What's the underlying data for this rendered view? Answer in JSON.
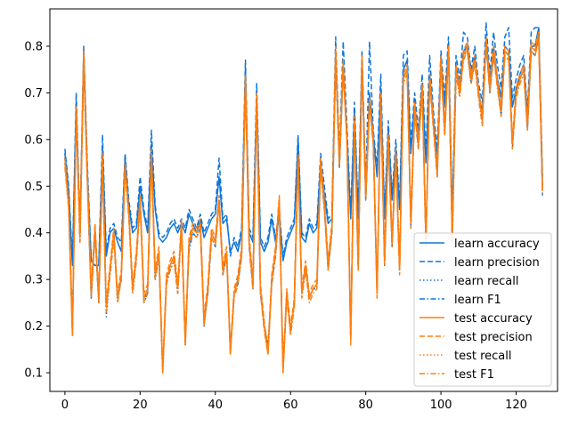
{
  "chart_data": {
    "type": "line",
    "title": "",
    "xlabel": "",
    "ylabel": "",
    "xlim": [
      -4,
      131
    ],
    "ylim": [
      0.06,
      0.88
    ],
    "xticks": [
      0,
      20,
      40,
      60,
      80,
      100,
      120
    ],
    "yticks": [
      0.1,
      0.2,
      0.3,
      0.4,
      0.5,
      0.6,
      0.7,
      0.8
    ],
    "grid": false,
    "legend_position": "bottom-right",
    "x": [
      0,
      1,
      2,
      3,
      4,
      5,
      6,
      7,
      8,
      9,
      10,
      11,
      12,
      13,
      14,
      15,
      16,
      17,
      18,
      19,
      20,
      21,
      22,
      23,
      24,
      25,
      26,
      27,
      28,
      29,
      30,
      31,
      32,
      33,
      34,
      35,
      36,
      37,
      38,
      39,
      40,
      41,
      42,
      43,
      44,
      45,
      46,
      47,
      48,
      49,
      50,
      51,
      52,
      53,
      54,
      55,
      56,
      57,
      58,
      59,
      60,
      61,
      62,
      63,
      64,
      65,
      66,
      67,
      68,
      69,
      70,
      71,
      72,
      73,
      74,
      75,
      76,
      77,
      78,
      79,
      80,
      81,
      82,
      83,
      84,
      85,
      86,
      87,
      88,
      89,
      90,
      91,
      92,
      93,
      94,
      95,
      96,
      97,
      98,
      99,
      100,
      101,
      102,
      103,
      104,
      105,
      106,
      107,
      108,
      109,
      110,
      111,
      112,
      113,
      114,
      115,
      116,
      117,
      118,
      119,
      120,
      121,
      122,
      123,
      124,
      125,
      126,
      127
    ],
    "series": [
      {
        "name": "learn accuracy",
        "color": "#0f75d9",
        "dash": "solid",
        "values": [
          0.57,
          0.49,
          0.33,
          0.68,
          0.4,
          0.79,
          0.52,
          0.34,
          0.33,
          0.33,
          0.58,
          0.35,
          0.4,
          0.41,
          0.38,
          0.36,
          0.56,
          0.46,
          0.4,
          0.41,
          0.5,
          0.44,
          0.4,
          0.59,
          0.45,
          0.39,
          0.38,
          0.39,
          0.41,
          0.42,
          0.4,
          0.42,
          0.4,
          0.44,
          0.42,
          0.4,
          0.43,
          0.39,
          0.41,
          0.43,
          0.44,
          0.52,
          0.42,
          0.43,
          0.36,
          0.38,
          0.36,
          0.4,
          0.75,
          0.4,
          0.38,
          0.69,
          0.38,
          0.36,
          0.38,
          0.43,
          0.38,
          0.44,
          0.34,
          0.38,
          0.4,
          0.42,
          0.6,
          0.39,
          0.38,
          0.42,
          0.4,
          0.41,
          0.55,
          0.48,
          0.42,
          0.43,
          0.78,
          0.55,
          0.76,
          0.61,
          0.43,
          0.66,
          0.43,
          0.77,
          0.48,
          0.7,
          0.61,
          0.52,
          0.71,
          0.43,
          0.62,
          0.47,
          0.58,
          0.45,
          0.75,
          0.77,
          0.57,
          0.68,
          0.6,
          0.72,
          0.55,
          0.74,
          0.64,
          0.56,
          0.77,
          0.67,
          0.8,
          0.43,
          0.76,
          0.71,
          0.79,
          0.8,
          0.73,
          0.78,
          0.7,
          0.66,
          0.82,
          0.72,
          0.8,
          0.73,
          0.69,
          0.8,
          0.79,
          0.67,
          0.71,
          0.74,
          0.76,
          0.65,
          0.8,
          0.8,
          0.84,
          0.5
        ]
      },
      {
        "name": "learn precision",
        "color": "#0f75d9",
        "dash": "dashed",
        "values": [
          0.58,
          0.5,
          0.34,
          0.7,
          0.41,
          0.8,
          0.54,
          0.34,
          0.33,
          0.33,
          0.61,
          0.36,
          0.41,
          0.42,
          0.39,
          0.38,
          0.57,
          0.47,
          0.41,
          0.42,
          0.52,
          0.45,
          0.41,
          0.62,
          0.46,
          0.4,
          0.39,
          0.4,
          0.42,
          0.43,
          0.41,
          0.43,
          0.41,
          0.45,
          0.43,
          0.41,
          0.44,
          0.4,
          0.42,
          0.44,
          0.45,
          0.56,
          0.43,
          0.44,
          0.35,
          0.39,
          0.37,
          0.41,
          0.77,
          0.41,
          0.39,
          0.72,
          0.39,
          0.37,
          0.39,
          0.44,
          0.39,
          0.45,
          0.35,
          0.39,
          0.41,
          0.43,
          0.61,
          0.4,
          0.39,
          0.43,
          0.41,
          0.42,
          0.57,
          0.5,
          0.43,
          0.44,
          0.82,
          0.57,
          0.81,
          0.63,
          0.44,
          0.68,
          0.44,
          0.79,
          0.5,
          0.81,
          0.62,
          0.54,
          0.74,
          0.44,
          0.64,
          0.48,
          0.6,
          0.46,
          0.78,
          0.79,
          0.59,
          0.7,
          0.62,
          0.74,
          0.57,
          0.78,
          0.66,
          0.58,
          0.79,
          0.69,
          0.82,
          0.44,
          0.78,
          0.73,
          0.83,
          0.82,
          0.75,
          0.8,
          0.72,
          0.68,
          0.85,
          0.74,
          0.83,
          0.76,
          0.71,
          0.82,
          0.84,
          0.69,
          0.73,
          0.76,
          0.78,
          0.66,
          0.83,
          0.84,
          0.84,
          0.52
        ]
      },
      {
        "name": "learn recall",
        "color": "#0f75d9",
        "dash": "dotted",
        "values": [
          0.57,
          0.48,
          0.19,
          0.67,
          0.39,
          0.77,
          0.51,
          0.26,
          0.41,
          0.25,
          0.56,
          0.22,
          0.32,
          0.4,
          0.25,
          0.31,
          0.55,
          0.45,
          0.28,
          0.35,
          0.48,
          0.25,
          0.27,
          0.58,
          0.3,
          0.36,
          0.1,
          0.3,
          0.33,
          0.35,
          0.28,
          0.42,
          0.16,
          0.37,
          0.41,
          0.4,
          0.42,
          0.2,
          0.27,
          0.4,
          0.38,
          0.48,
          0.32,
          0.36,
          0.15,
          0.27,
          0.3,
          0.36,
          0.73,
          0.38,
          0.29,
          0.69,
          0.27,
          0.2,
          0.15,
          0.3,
          0.36,
          0.47,
          0.11,
          0.27,
          0.19,
          0.25,
          0.57,
          0.27,
          0.33,
          0.26,
          0.28,
          0.29,
          0.55,
          0.46,
          0.33,
          0.41,
          0.78,
          0.55,
          0.76,
          0.61,
          0.17,
          0.65,
          0.33,
          0.77,
          0.48,
          0.69,
          0.6,
          0.27,
          0.7,
          0.34,
          0.61,
          0.38,
          0.58,
          0.32,
          0.74,
          0.76,
          0.42,
          0.67,
          0.59,
          0.72,
          0.38,
          0.74,
          0.64,
          0.53,
          0.77,
          0.62,
          0.8,
          0.39,
          0.75,
          0.71,
          0.79,
          0.8,
          0.73,
          0.78,
          0.7,
          0.64,
          0.82,
          0.71,
          0.79,
          0.73,
          0.66,
          0.8,
          0.79,
          0.59,
          0.71,
          0.74,
          0.76,
          0.63,
          0.8,
          0.79,
          0.83,
          0.49
        ]
      },
      {
        "name": "learn F1",
        "color": "#0f75d9",
        "dash": "dashdot",
        "values": [
          0.56,
          0.47,
          0.2,
          0.66,
          0.38,
          0.76,
          0.5,
          0.26,
          0.4,
          0.25,
          0.55,
          0.23,
          0.31,
          0.39,
          0.26,
          0.3,
          0.54,
          0.44,
          0.27,
          0.34,
          0.47,
          0.26,
          0.27,
          0.57,
          0.3,
          0.35,
          0.11,
          0.29,
          0.32,
          0.34,
          0.27,
          0.41,
          0.17,
          0.36,
          0.4,
          0.39,
          0.41,
          0.21,
          0.27,
          0.39,
          0.37,
          0.47,
          0.31,
          0.35,
          0.15,
          0.27,
          0.29,
          0.35,
          0.72,
          0.37,
          0.28,
          0.68,
          0.27,
          0.2,
          0.16,
          0.29,
          0.35,
          0.46,
          0.12,
          0.27,
          0.19,
          0.25,
          0.56,
          0.27,
          0.32,
          0.26,
          0.28,
          0.28,
          0.54,
          0.45,
          0.32,
          0.4,
          0.77,
          0.54,
          0.75,
          0.6,
          0.18,
          0.64,
          0.32,
          0.76,
          0.47,
          0.68,
          0.59,
          0.27,
          0.69,
          0.33,
          0.6,
          0.37,
          0.57,
          0.32,
          0.73,
          0.75,
          0.41,
          0.66,
          0.58,
          0.71,
          0.38,
          0.73,
          0.63,
          0.52,
          0.76,
          0.61,
          0.79,
          0.38,
          0.74,
          0.7,
          0.78,
          0.79,
          0.72,
          0.77,
          0.69,
          0.63,
          0.81,
          0.7,
          0.78,
          0.72,
          0.65,
          0.79,
          0.78,
          0.58,
          0.7,
          0.73,
          0.75,
          0.62,
          0.79,
          0.78,
          0.82,
          0.48
        ]
      },
      {
        "name": "test accuracy",
        "color": "#ff7f0e",
        "dash": "solid",
        "values": [
          0.55,
          0.46,
          0.18,
          0.66,
          0.39,
          0.78,
          0.51,
          0.27,
          0.41,
          0.26,
          0.55,
          0.24,
          0.32,
          0.4,
          0.26,
          0.31,
          0.54,
          0.44,
          0.28,
          0.35,
          0.47,
          0.26,
          0.28,
          0.57,
          0.31,
          0.36,
          0.1,
          0.3,
          0.33,
          0.35,
          0.28,
          0.42,
          0.16,
          0.38,
          0.41,
          0.4,
          0.42,
          0.21,
          0.28,
          0.4,
          0.38,
          0.47,
          0.32,
          0.36,
          0.14,
          0.27,
          0.3,
          0.36,
          0.73,
          0.38,
          0.29,
          0.69,
          0.28,
          0.2,
          0.14,
          0.3,
          0.36,
          0.47,
          0.1,
          0.27,
          0.19,
          0.25,
          0.56,
          0.27,
          0.33,
          0.26,
          0.28,
          0.29,
          0.55,
          0.46,
          0.33,
          0.41,
          0.79,
          0.55,
          0.76,
          0.6,
          0.17,
          0.64,
          0.33,
          0.77,
          0.48,
          0.68,
          0.6,
          0.27,
          0.69,
          0.34,
          0.6,
          0.38,
          0.57,
          0.32,
          0.73,
          0.75,
          0.42,
          0.67,
          0.59,
          0.71,
          0.38,
          0.73,
          0.63,
          0.53,
          0.77,
          0.62,
          0.79,
          0.39,
          0.75,
          0.7,
          0.78,
          0.8,
          0.73,
          0.77,
          0.7,
          0.64,
          0.81,
          0.71,
          0.79,
          0.72,
          0.66,
          0.79,
          0.78,
          0.59,
          0.7,
          0.73,
          0.75,
          0.63,
          0.8,
          0.79,
          0.82,
          0.49
        ]
      },
      {
        "name": "test precision",
        "color": "#ff7f0e",
        "dash": "dashed",
        "values": [
          0.56,
          0.47,
          0.19,
          0.67,
          0.4,
          0.79,
          0.52,
          0.28,
          0.42,
          0.27,
          0.57,
          0.25,
          0.33,
          0.41,
          0.27,
          0.32,
          0.55,
          0.45,
          0.29,
          0.36,
          0.48,
          0.27,
          0.29,
          0.58,
          0.32,
          0.37,
          0.11,
          0.31,
          0.34,
          0.36,
          0.29,
          0.43,
          0.17,
          0.39,
          0.42,
          0.41,
          0.43,
          0.22,
          0.29,
          0.41,
          0.39,
          0.48,
          0.33,
          0.37,
          0.15,
          0.28,
          0.31,
          0.37,
          0.74,
          0.39,
          0.3,
          0.7,
          0.29,
          0.21,
          0.15,
          0.31,
          0.37,
          0.48,
          0.11,
          0.28,
          0.2,
          0.26,
          0.57,
          0.28,
          0.34,
          0.27,
          0.29,
          0.3,
          0.56,
          0.47,
          0.34,
          0.42,
          0.8,
          0.56,
          0.77,
          0.61,
          0.18,
          0.65,
          0.34,
          0.78,
          0.49,
          0.69,
          0.61,
          0.28,
          0.7,
          0.35,
          0.61,
          0.39,
          0.58,
          0.33,
          0.74,
          0.76,
          0.43,
          0.68,
          0.6,
          0.72,
          0.39,
          0.74,
          0.64,
          0.54,
          0.78,
          0.63,
          0.8,
          0.4,
          0.76,
          0.71,
          0.79,
          0.81,
          0.74,
          0.78,
          0.71,
          0.65,
          0.82,
          0.72,
          0.8,
          0.73,
          0.67,
          0.8,
          0.79,
          0.6,
          0.71,
          0.74,
          0.76,
          0.64,
          0.81,
          0.8,
          0.83,
          0.5
        ]
      },
      {
        "name": "test recall",
        "color": "#ff7f0e",
        "dash": "dotted",
        "values": [
          0.55,
          0.46,
          0.18,
          0.66,
          0.39,
          0.78,
          0.51,
          0.27,
          0.41,
          0.26,
          0.55,
          0.24,
          0.32,
          0.4,
          0.26,
          0.31,
          0.54,
          0.44,
          0.28,
          0.35,
          0.47,
          0.26,
          0.28,
          0.57,
          0.31,
          0.36,
          0.1,
          0.3,
          0.33,
          0.35,
          0.28,
          0.42,
          0.16,
          0.38,
          0.41,
          0.4,
          0.42,
          0.21,
          0.28,
          0.4,
          0.38,
          0.47,
          0.32,
          0.36,
          0.14,
          0.27,
          0.3,
          0.36,
          0.73,
          0.38,
          0.29,
          0.69,
          0.28,
          0.2,
          0.14,
          0.3,
          0.36,
          0.47,
          0.1,
          0.27,
          0.19,
          0.25,
          0.56,
          0.27,
          0.33,
          0.26,
          0.28,
          0.29,
          0.55,
          0.46,
          0.33,
          0.41,
          0.79,
          0.55,
          0.76,
          0.6,
          0.17,
          0.64,
          0.33,
          0.77,
          0.48,
          0.68,
          0.6,
          0.27,
          0.69,
          0.34,
          0.6,
          0.38,
          0.57,
          0.32,
          0.73,
          0.75,
          0.42,
          0.67,
          0.59,
          0.71,
          0.38,
          0.73,
          0.63,
          0.53,
          0.77,
          0.62,
          0.79,
          0.39,
          0.75,
          0.7,
          0.78,
          0.8,
          0.73,
          0.77,
          0.7,
          0.64,
          0.81,
          0.71,
          0.79,
          0.72,
          0.66,
          0.79,
          0.78,
          0.59,
          0.7,
          0.73,
          0.75,
          0.63,
          0.8,
          0.79,
          0.82,
          0.49
        ]
      },
      {
        "name": "test F1",
        "color": "#ff7f0e",
        "dash": "dashdot",
        "values": [
          0.54,
          0.45,
          0.18,
          0.65,
          0.38,
          0.77,
          0.5,
          0.26,
          0.4,
          0.25,
          0.54,
          0.23,
          0.31,
          0.39,
          0.25,
          0.3,
          0.53,
          0.43,
          0.27,
          0.34,
          0.46,
          0.25,
          0.27,
          0.56,
          0.3,
          0.35,
          0.1,
          0.29,
          0.32,
          0.34,
          0.27,
          0.41,
          0.16,
          0.37,
          0.4,
          0.39,
          0.41,
          0.2,
          0.27,
          0.39,
          0.37,
          0.46,
          0.31,
          0.35,
          0.14,
          0.26,
          0.29,
          0.35,
          0.72,
          0.37,
          0.28,
          0.68,
          0.27,
          0.19,
          0.14,
          0.29,
          0.35,
          0.46,
          0.1,
          0.26,
          0.18,
          0.24,
          0.55,
          0.26,
          0.32,
          0.25,
          0.27,
          0.28,
          0.54,
          0.45,
          0.32,
          0.4,
          0.78,
          0.54,
          0.75,
          0.59,
          0.16,
          0.63,
          0.32,
          0.76,
          0.47,
          0.67,
          0.59,
          0.26,
          0.68,
          0.33,
          0.59,
          0.37,
          0.56,
          0.31,
          0.72,
          0.74,
          0.41,
          0.66,
          0.58,
          0.7,
          0.37,
          0.72,
          0.62,
          0.52,
          0.76,
          0.61,
          0.78,
          0.38,
          0.74,
          0.69,
          0.77,
          0.79,
          0.72,
          0.76,
          0.69,
          0.63,
          0.8,
          0.7,
          0.78,
          0.71,
          0.65,
          0.78,
          0.77,
          0.58,
          0.69,
          0.72,
          0.74,
          0.62,
          0.79,
          0.78,
          0.81,
          0.48
        ]
      }
    ]
  }
}
